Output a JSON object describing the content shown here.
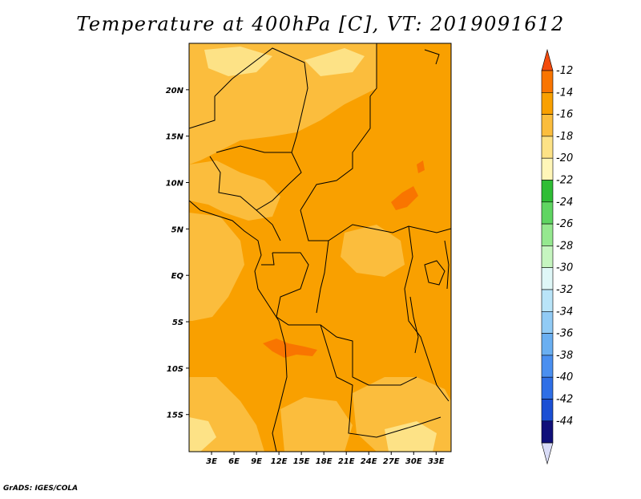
{
  "title": "Temperature at 400hPa [C], VT: 2019091612",
  "credit": "GrADS: IGES/COLA",
  "map": {
    "lat_range": [
      -19,
      25
    ],
    "lon_range": [
      0,
      35
    ],
    "lat_labels": [
      "20N",
      "15N",
      "10N",
      "5N",
      "EQ",
      "5S",
      "10S",
      "15S"
    ],
    "lat_values": [
      20,
      15,
      10,
      5,
      0,
      -5,
      -10,
      -15
    ],
    "lon_labels": [
      "3E",
      "6E",
      "9E",
      "12E",
      "15E",
      "18E",
      "21E",
      "24E",
      "27E",
      "30E",
      "33E"
    ],
    "lon_values": [
      3,
      6,
      9,
      12,
      15,
      18,
      21,
      24,
      27,
      30,
      33
    ],
    "dominant_range": "-16 to -14",
    "colors": {
      "background_field": "#f9a000",
      "light_patches": "#fbbd3d",
      "lighter_patches": "#fde286",
      "warm_patches": "#f97500",
      "boundaries": "#000000"
    }
  },
  "colorbar": {
    "labels": [
      "-12",
      "-14",
      "-16",
      "-18",
      "-20",
      "-22",
      "-24",
      "-26",
      "-28",
      "-30",
      "-32",
      "-34",
      "-36",
      "-38",
      "-40",
      "-42",
      "-44"
    ],
    "colors": [
      "#f34b0d",
      "#f97500",
      "#f9a000",
      "#fbbd3d",
      "#fde286",
      "#fff6b8",
      "#2fbd35",
      "#5fd562",
      "#95e88f",
      "#c6f5c0",
      "#dff7f7",
      "#b9e4f8",
      "#91cbf5",
      "#6aaff1",
      "#4a8ff0",
      "#2f6fe6",
      "#1b4fd4",
      "#10107a",
      "#d9dcf7"
    ]
  }
}
